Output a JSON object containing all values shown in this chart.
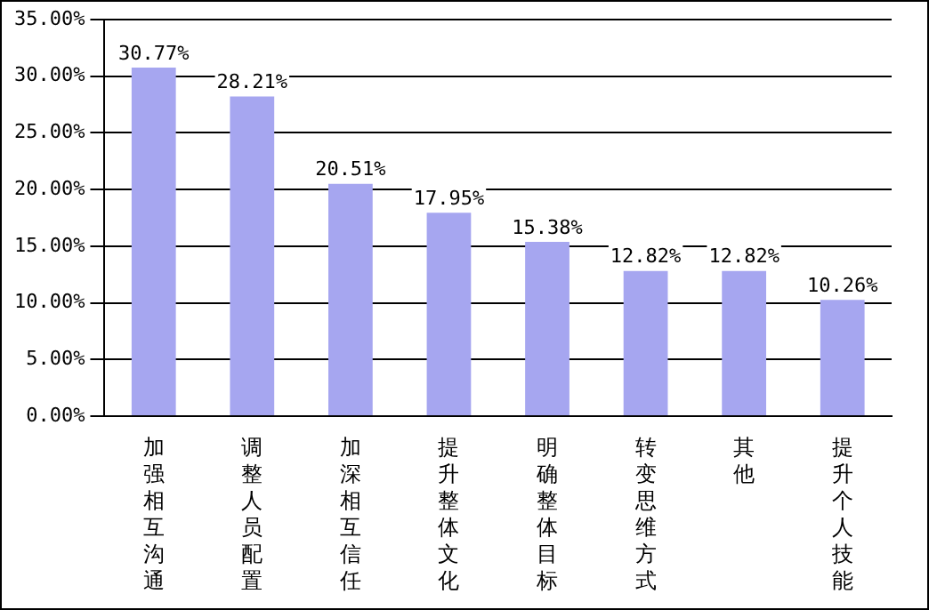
{
  "chart_data": {
    "type": "bar",
    "categories": [
      "加强相互沟通",
      "调整人员配置",
      "加深相互信任",
      "提升整体文化",
      "明确整体目标",
      "转变思维方式",
      "其他",
      "提升个人技能"
    ],
    "values": [
      30.77,
      28.21,
      20.51,
      17.95,
      15.38,
      12.82,
      12.82,
      10.26
    ],
    "value_labels": [
      "30.77%",
      "28.21%",
      "20.51%",
      "17.95%",
      "15.38%",
      "12.82%",
      "12.82%",
      "10.26%"
    ],
    "color": "#a6a6f0",
    "ylim": [
      0,
      35
    ],
    "yticks": [
      {
        "value": 0,
        "label": "0.00%"
      },
      {
        "value": 5,
        "label": "5.00%"
      },
      {
        "value": 10,
        "label": "10.00%"
      },
      {
        "value": 15,
        "label": "15.00%"
      },
      {
        "value": 20,
        "label": "20.00%"
      },
      {
        "value": 25,
        "label": "25.00%"
      },
      {
        "value": 30,
        "label": "30.00%"
      },
      {
        "value": 35,
        "label": "35.00%"
      }
    ],
    "grid": "y",
    "legend": false
  }
}
